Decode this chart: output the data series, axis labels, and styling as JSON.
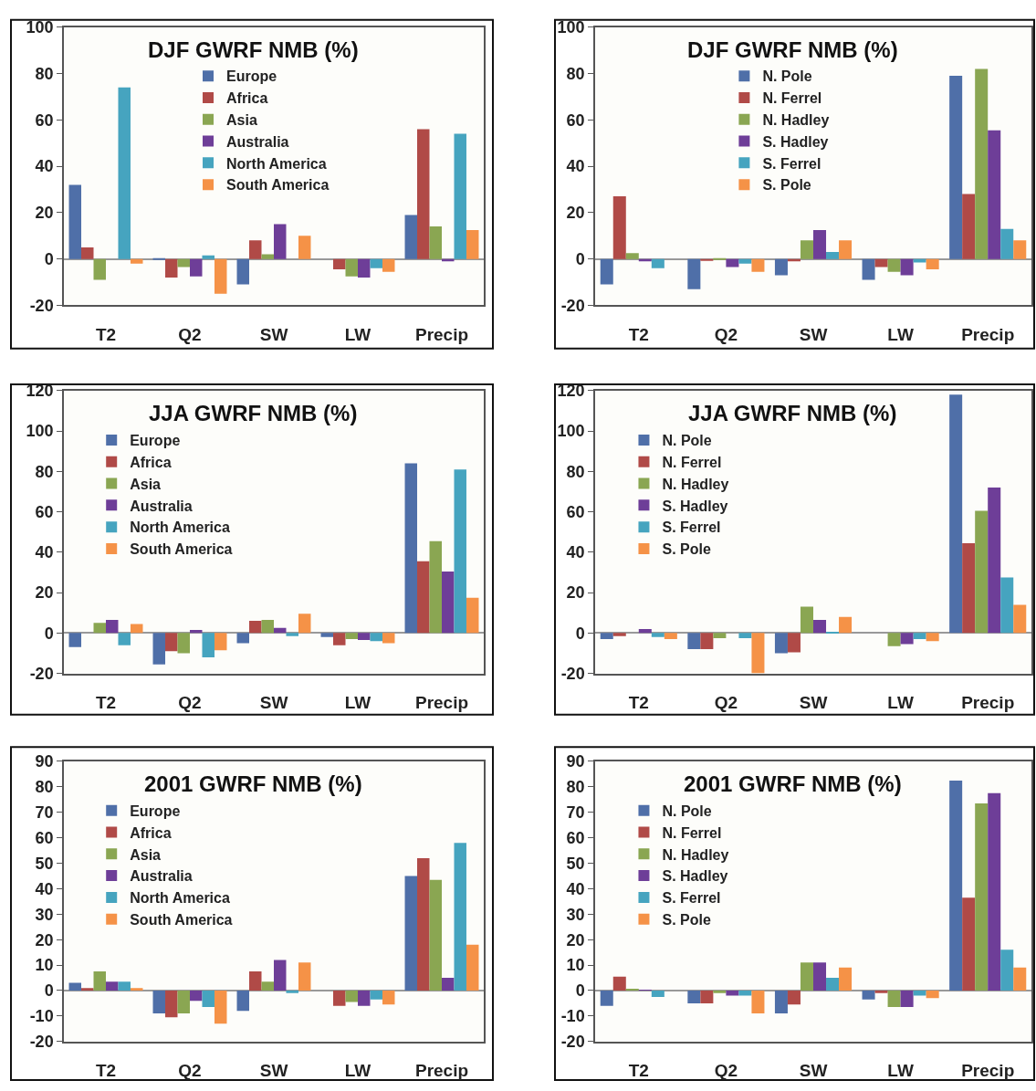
{
  "chart_data": [
    {
      "type": "bar",
      "title": "DJF GWRF NMB (%)",
      "categories": [
        "T2",
        "Q2",
        "SW",
        "LW",
        "Precip"
      ],
      "ylim": [
        -20,
        100
      ],
      "yticks": [
        -20,
        0,
        20,
        40,
        60,
        80,
        100
      ],
      "legend": "top",
      "series": [
        {
          "name": "Europe",
          "color": "#4f6fa8",
          "values": [
            32,
            0.3,
            -11,
            0,
            19
          ]
        },
        {
          "name": "Africa",
          "color": "#b04a47",
          "values": [
            5,
            -8,
            8,
            -4.5,
            56
          ]
        },
        {
          "name": "Asia",
          "color": "#8aa652",
          "values": [
            -9,
            -3.5,
            2,
            -7.5,
            14
          ]
        },
        {
          "name": "Australia",
          "color": "#6e3e98",
          "values": [
            0,
            -7.5,
            15,
            -8,
            -1
          ]
        },
        {
          "name": "North America",
          "color": "#46a4bf",
          "values": [
            74,
            1.5,
            0,
            -4,
            54
          ]
        },
        {
          "name": "South America",
          "color": "#f59247",
          "values": [
            -2,
            -15,
            10,
            -5.5,
            12.5
          ]
        }
      ]
    },
    {
      "type": "bar",
      "title": "DJF GWRF NMB (%)",
      "categories": [
        "T2",
        "Q2",
        "SW",
        "LW",
        "Precip"
      ],
      "ylim": [
        -20,
        100
      ],
      "yticks": [
        -20,
        0,
        20,
        40,
        60,
        80,
        100
      ],
      "legend": "top",
      "series": [
        {
          "name": "N. Pole",
          "color": "#4f6fa8",
          "values": [
            -11,
            -13,
            -7,
            -9,
            79
          ]
        },
        {
          "name": "N. Ferrel",
          "color": "#b04a47",
          "values": [
            27,
            -0.5,
            -1,
            -3.5,
            28
          ]
        },
        {
          "name": "N. Hadley",
          "color": "#8aa652",
          "values": [
            2.5,
            0.3,
            8,
            -5.5,
            82
          ]
        },
        {
          "name": "S. Hadley",
          "color": "#6e3e98",
          "values": [
            -1,
            -3.5,
            12.5,
            -7,
            55.5
          ]
        },
        {
          "name": "S. Ferrel",
          "color": "#46a4bf",
          "values": [
            -4,
            -2,
            3,
            -1.5,
            13
          ]
        },
        {
          "name": "S. Pole",
          "color": "#f59247",
          "values": [
            0,
            -5.5,
            8,
            -4.5,
            8
          ]
        }
      ]
    },
    {
      "type": "bar",
      "title": "JJA GWRF NMB (%)",
      "categories": [
        "T2",
        "Q2",
        "SW",
        "LW",
        "Precip"
      ],
      "ylim": [
        -20,
        120
      ],
      "yticks": [
        -20,
        0,
        20,
        40,
        60,
        80,
        100,
        120
      ],
      "legend": "top left",
      "series": [
        {
          "name": "Europe",
          "color": "#4f6fa8",
          "values": [
            -7,
            -15.5,
            -5,
            -2,
            84
          ]
        },
        {
          "name": "Africa",
          "color": "#b04a47",
          "values": [
            0,
            -9,
            6,
            -6,
            35.5
          ]
        },
        {
          "name": "Asia",
          "color": "#8aa652",
          "values": [
            5,
            -10,
            6.5,
            -3,
            45.5
          ]
        },
        {
          "name": "Australia",
          "color": "#6e3e98",
          "values": [
            6.5,
            1.5,
            2.5,
            -3.5,
            30.5
          ]
        },
        {
          "name": "North America",
          "color": "#46a4bf",
          "values": [
            -6,
            -12,
            -1.5,
            -4,
            81
          ]
        },
        {
          "name": "South America",
          "color": "#f59247",
          "values": [
            4.5,
            -8.5,
            9.5,
            -5,
            17.5
          ]
        }
      ]
    },
    {
      "type": "bar",
      "title": "JJA GWRF NMB (%)",
      "categories": [
        "T2",
        "Q2",
        "SW",
        "LW",
        "Precip"
      ],
      "ylim": [
        -20,
        120
      ],
      "yticks": [
        -20,
        0,
        20,
        40,
        60,
        80,
        100,
        120
      ],
      "legend": "top left",
      "series": [
        {
          "name": "N. Pole",
          "color": "#4f6fa8",
          "values": [
            -3,
            -8,
            -10,
            0,
            118
          ]
        },
        {
          "name": "N. Ferrel",
          "color": "#b04a47",
          "values": [
            -1.5,
            -8,
            -9.5,
            0,
            44.5
          ]
        },
        {
          "name": "N. Hadley",
          "color": "#8aa652",
          "values": [
            0,
            -2.5,
            13,
            -6.5,
            60.5
          ]
        },
        {
          "name": "S. Hadley",
          "color": "#6e3e98",
          "values": [
            2,
            0,
            6.5,
            -5.5,
            72
          ]
        },
        {
          "name": "S. Ferrel",
          "color": "#46a4bf",
          "values": [
            -2,
            -2.5,
            0.5,
            -3,
            27.5
          ]
        },
        {
          "name": "S. Pole",
          "color": "#f59247",
          "values": [
            -3,
            -20,
            8,
            -4,
            14
          ]
        }
      ]
    },
    {
      "type": "bar",
      "title": "2001 GWRF NMB (%)",
      "categories": [
        "T2",
        "Q2",
        "SW",
        "LW",
        "Precip"
      ],
      "ylim": [
        -20,
        90
      ],
      "yticks": [
        -20,
        -10,
        0,
        10,
        20,
        30,
        40,
        50,
        60,
        70,
        80,
        90
      ],
      "legend": "top left",
      "series": [
        {
          "name": "Europe",
          "color": "#4f6fa8",
          "values": [
            3,
            -9,
            -8,
            0,
            45
          ]
        },
        {
          "name": "Africa",
          "color": "#b04a47",
          "values": [
            1,
            -10.5,
            7.5,
            -6,
            52
          ]
        },
        {
          "name": "Asia",
          "color": "#8aa652",
          "values": [
            7.5,
            -9,
            3.5,
            -4.5,
            43.5
          ]
        },
        {
          "name": "Australia",
          "color": "#6e3e98",
          "values": [
            3.5,
            -4,
            12,
            -6,
            5
          ]
        },
        {
          "name": "North America",
          "color": "#46a4bf",
          "values": [
            3.5,
            -6.5,
            -1,
            -3.5,
            58
          ]
        },
        {
          "name": "South America",
          "color": "#f59247",
          "values": [
            1,
            -13,
            11,
            -5.5,
            18
          ]
        }
      ]
    },
    {
      "type": "bar",
      "title": "2001 GWRF NMB (%)",
      "categories": [
        "T2",
        "Q2",
        "SW",
        "LW",
        "Precip"
      ],
      "ylim": [
        -20,
        90
      ],
      "yticks": [
        -20,
        -10,
        0,
        10,
        20,
        30,
        40,
        50,
        60,
        70,
        80,
        90
      ],
      "legend": "top left",
      "series": [
        {
          "name": "N. Pole",
          "color": "#4f6fa8",
          "values": [
            -6,
            -5,
            -9,
            -3.5,
            82.5
          ]
        },
        {
          "name": "N. Ferrel",
          "color": "#b04a47",
          "values": [
            5.5,
            -5,
            -5.5,
            -1,
            36.5
          ]
        },
        {
          "name": "N. Hadley",
          "color": "#8aa652",
          "values": [
            0.5,
            -1,
            11,
            -6.5,
            73.5
          ]
        },
        {
          "name": "S. Hadley",
          "color": "#6e3e98",
          "values": [
            0.3,
            -2,
            11,
            -6.5,
            77.5
          ]
        },
        {
          "name": "S. Ferrel",
          "color": "#46a4bf",
          "values": [
            -2.5,
            -2,
            5,
            -2,
            16
          ]
        },
        {
          "name": "S. Pole",
          "color": "#f59247",
          "values": [
            0,
            -9,
            9,
            -3,
            9
          ]
        }
      ]
    }
  ]
}
